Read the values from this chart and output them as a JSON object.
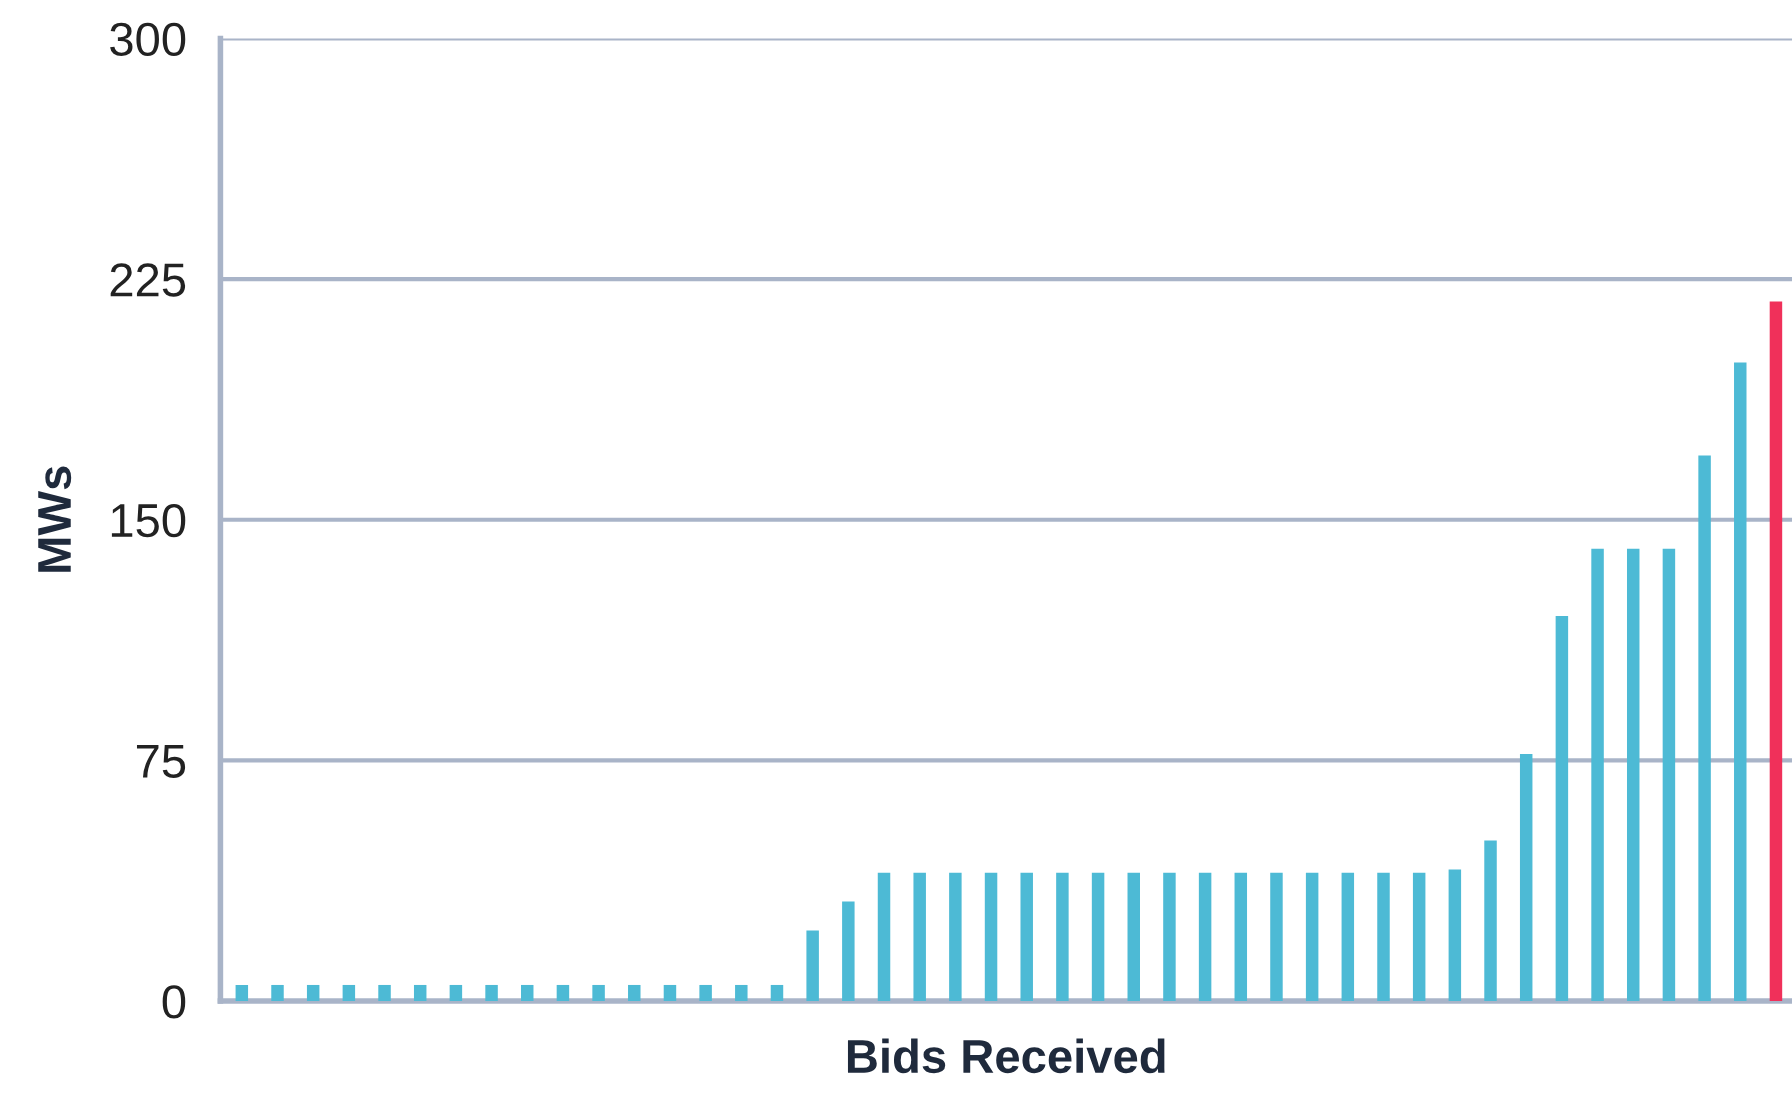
{
  "chart_data": {
    "type": "bar",
    "xlabel": "Bids Received",
    "ylabel": "MWs",
    "categories": [
      null,
      null,
      null,
      null,
      null,
      null,
      null,
      null,
      null,
      null,
      null,
      null,
      null,
      null,
      null,
      null,
      null,
      null,
      null,
      null,
      null,
      null,
      null,
      null,
      null,
      null,
      null,
      null,
      null,
      null,
      null,
      null,
      null,
      null,
      null,
      null,
      null,
      null,
      null,
      null,
      null,
      null,
      null,
      null
    ],
    "values": [
      5,
      5,
      5,
      5,
      5,
      5,
      5,
      5,
      5,
      5,
      5,
      5,
      5,
      5,
      5,
      5,
      22,
      31,
      40,
      40,
      40,
      40,
      40,
      40,
      40,
      40,
      40,
      40,
      40,
      40,
      40,
      40,
      40,
      40,
      41,
      50,
      77,
      120,
      141,
      141,
      141,
      170,
      199,
      218
    ],
    "colors": [
      "#4dbad5",
      "#4dbad5",
      "#4dbad5",
      "#4dbad5",
      "#4dbad5",
      "#4dbad5",
      "#4dbad5",
      "#4dbad5",
      "#4dbad5",
      "#4dbad5",
      "#4dbad5",
      "#4dbad5",
      "#4dbad5",
      "#4dbad5",
      "#4dbad5",
      "#4dbad5",
      "#4dbad5",
      "#4dbad5",
      "#4dbad5",
      "#4dbad5",
      "#4dbad5",
      "#4dbad5",
      "#4dbad5",
      "#4dbad5",
      "#4dbad5",
      "#4dbad5",
      "#4dbad5",
      "#4dbad5",
      "#4dbad5",
      "#4dbad5",
      "#4dbad5",
      "#4dbad5",
      "#4dbad5",
      "#4dbad5",
      "#4dbad5",
      "#4dbad5",
      "#4dbad5",
      "#4dbad5",
      "#4dbad5",
      "#4dbad5",
      "#4dbad5",
      "#4dbad5",
      "#4dbad5",
      "#f0305a"
    ],
    "ylim": [
      0,
      300
    ],
    "yticks": [
      0,
      75,
      150,
      225,
      300
    ],
    "grid": "y"
  }
}
